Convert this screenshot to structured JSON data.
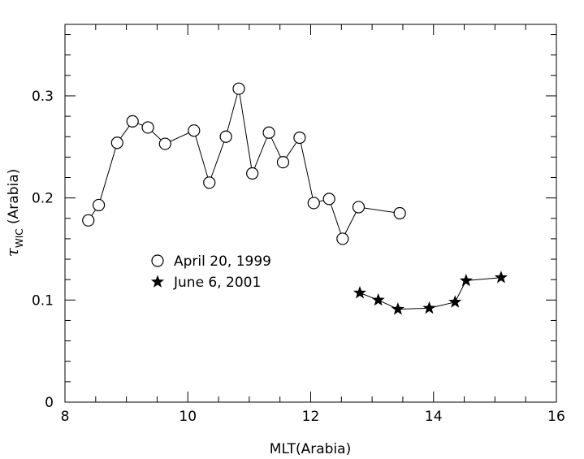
{
  "chart_data": {
    "type": "scatter",
    "xlabel": "MLT(Arabia)",
    "ylabel_symbol": "τ",
    "ylabel_subscript": "WIC",
    "ylabel_suffix": "(Arabia)",
    "xlim": [
      8,
      16
    ],
    "ylim": [
      0,
      0.37
    ],
    "x_ticks": [
      8,
      10,
      12,
      14,
      16
    ],
    "x_tick_labels": [
      "8",
      "10",
      "12",
      "14",
      "16"
    ],
    "y_ticks": [
      0,
      0.1,
      0.2,
      0.3
    ],
    "y_tick_labels": [
      "0",
      "0.1",
      "0.2",
      "0.3"
    ],
    "x_minor_step": 0.5,
    "y_minor_step": 0.02,
    "grid": false,
    "legend_position": "center-left",
    "series": [
      {
        "name": "April 20, 1999",
        "marker": "open-circle",
        "color": "#000000",
        "x": [
          8.38,
          8.55,
          8.85,
          9.1,
          9.35,
          9.63,
          10.1,
          10.35,
          10.62,
          10.83,
          11.05,
          11.32,
          11.55,
          11.82,
          12.05,
          12.3,
          12.52,
          12.78,
          13.45
        ],
        "y": [
          0.178,
          0.193,
          0.254,
          0.275,
          0.269,
          0.253,
          0.266,
          0.215,
          0.26,
          0.307,
          0.224,
          0.264,
          0.235,
          0.259,
          0.195,
          0.199,
          0.16,
          0.191,
          0.185
        ]
      },
      {
        "name": "June 6, 2001",
        "marker": "filled-star",
        "color": "#000000",
        "x": [
          12.8,
          13.1,
          13.42,
          13.93,
          14.35,
          14.53,
          15.1
        ],
        "y": [
          0.107,
          0.1,
          0.091,
          0.092,
          0.098,
          0.119,
          0.122
        ]
      }
    ]
  }
}
